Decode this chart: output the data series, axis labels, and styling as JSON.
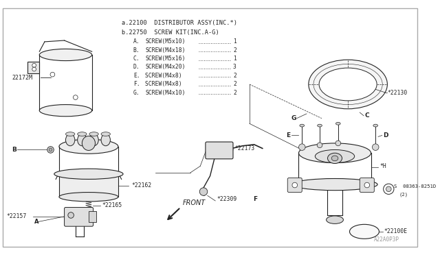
{
  "background_color": "#ffffff",
  "border_color": "#aaaaaa",
  "text_color": "#222222",
  "gray": "#666666",
  "light_gray": "#999999",
  "fig_w": 6.4,
  "fig_h": 3.72,
  "dpi": 100,
  "title_a": "a.22100  DISTRIBUTOR ASSY(INC.*)",
  "title_b": "b.22750  SCREW KIT(INC.A-G)",
  "screws": [
    [
      "A.",
      "SCREW(M5x10)",
      "1"
    ],
    [
      "B.",
      "SCREW(M4x18)",
      "2"
    ],
    [
      "C.",
      "SCREW(M5x16)",
      "1"
    ],
    [
      "D.",
      "SCREW(M4x20)",
      "3"
    ],
    [
      "E.",
      "SCREW(M4x8) ",
      "2"
    ],
    [
      "F.",
      "SCREW(M4x8) ",
      "2"
    ],
    [
      "G.",
      "SCREW(M4x10)",
      "2"
    ]
  ]
}
